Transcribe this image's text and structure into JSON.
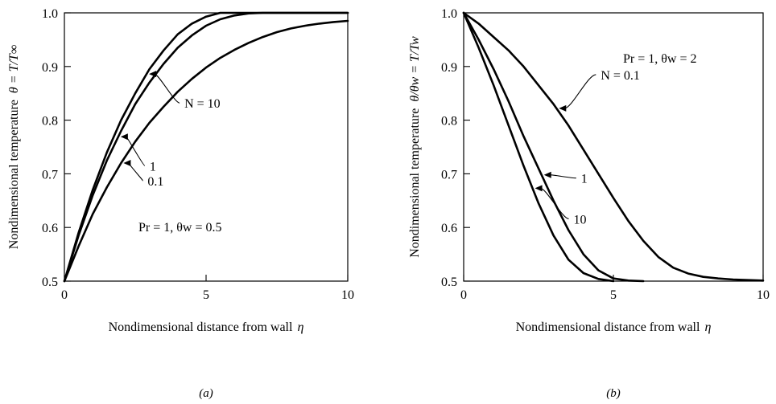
{
  "chart_data": [
    {
      "type": "line",
      "panel": "(a)",
      "xlabel": "Nondimensional distance from wall",
      "xlabel_symbol": "η",
      "ylabel": "Nondimensional temperature",
      "ylabel_symbol": "θ = T/T∞",
      "xlim": [
        0,
        10
      ],
      "ylim": [
        0.5,
        1.0
      ],
      "xticks": [
        0,
        5,
        10
      ],
      "yticks": [
        0.5,
        0.6,
        0.7,
        0.8,
        0.9,
        1.0
      ],
      "grid": false,
      "annotation": "Pr = 1,  θw = 0.5",
      "series": [
        {
          "name": "N = 10",
          "x": [
            0,
            0.5,
            1,
            1.5,
            2,
            2.5,
            3,
            3.5,
            4,
            4.5,
            5,
            5.5,
            6,
            10
          ],
          "y": [
            0.5,
            0.59,
            0.67,
            0.74,
            0.8,
            0.85,
            0.895,
            0.93,
            0.96,
            0.98,
            0.993,
            1.0,
            1.0,
            1.0
          ]
        },
        {
          "name": "1",
          "x": [
            0,
            0.5,
            1,
            1.5,
            2,
            2.5,
            3,
            3.5,
            4,
            4.5,
            5,
            5.5,
            6,
            6.5,
            7,
            10
          ],
          "y": [
            0.5,
            0.585,
            0.66,
            0.725,
            0.78,
            0.83,
            0.87,
            0.905,
            0.935,
            0.958,
            0.976,
            0.988,
            0.995,
            0.999,
            1.0,
            1.0
          ]
        },
        {
          "name": "0.1",
          "x": [
            0,
            0.5,
            1,
            1.5,
            2,
            2.5,
            3,
            3.5,
            4,
            4.5,
            5,
            5.5,
            6,
            6.5,
            7,
            7.5,
            8,
            8.5,
            9,
            9.5,
            10
          ],
          "y": [
            0.5,
            0.565,
            0.625,
            0.675,
            0.72,
            0.76,
            0.795,
            0.825,
            0.853,
            0.877,
            0.898,
            0.916,
            0.931,
            0.944,
            0.955,
            0.964,
            0.971,
            0.976,
            0.98,
            0.983,
            0.985
          ]
        }
      ],
      "labels": [
        {
          "text": "N = 10",
          "series": 0,
          "at_x": 2.9
        },
        {
          "text": "1",
          "series": 1,
          "at_x": 1.9
        },
        {
          "text": "0.1",
          "series": 2,
          "at_x": 2.0
        }
      ],
      "caption": "(a)"
    },
    {
      "type": "line",
      "panel": "(b)",
      "xlabel": "Nondimensional distance from wall",
      "xlabel_symbol": "η",
      "ylabel": "Nondimensional temperature",
      "ylabel_symbol": "θ/θw = T/Tw",
      "xlim": [
        0,
        10
      ],
      "ylim": [
        0.5,
        1.0
      ],
      "xticks": [
        0,
        5,
        10
      ],
      "yticks": [
        0.5,
        0.6,
        0.7,
        0.8,
        0.9,
        1.0
      ],
      "grid": false,
      "annotation": "Pr = 1,  θw = 2",
      "series": [
        {
          "name": "N = 0.1",
          "x": [
            0,
            0.5,
            1,
            1.5,
            2,
            2.5,
            3,
            3.5,
            4,
            4.5,
            5,
            5.5,
            6,
            6.5,
            7,
            7.5,
            8,
            8.5,
            9,
            9.5,
            10
          ],
          "y": [
            1.0,
            0.98,
            0.955,
            0.93,
            0.9,
            0.865,
            0.83,
            0.79,
            0.745,
            0.7,
            0.655,
            0.612,
            0.575,
            0.545,
            0.525,
            0.514,
            0.508,
            0.505,
            0.503,
            0.502,
            0.501
          ]
        },
        {
          "name": "1",
          "x": [
            0,
            0.5,
            1,
            1.5,
            2,
            2.5,
            3,
            3.5,
            4,
            4.5,
            5,
            5.5,
            6
          ],
          "y": [
            1.0,
            0.95,
            0.895,
            0.835,
            0.77,
            0.71,
            0.65,
            0.595,
            0.55,
            0.52,
            0.505,
            0.501,
            0.5
          ]
        },
        {
          "name": "10",
          "x": [
            0,
            0.5,
            1,
            1.5,
            2,
            2.5,
            3,
            3.5,
            4,
            4.5,
            5
          ],
          "y": [
            1.0,
            0.935,
            0.865,
            0.79,
            0.715,
            0.645,
            0.585,
            0.54,
            0.515,
            0.504,
            0.5
          ]
        }
      ],
      "labels": [
        {
          "text": "N = 0.1",
          "series": 0,
          "at_x": 3.1
        },
        {
          "text": "1",
          "series": 1,
          "at_x": 2.6
        },
        {
          "text": "10",
          "series": 2,
          "at_x": 2.3
        }
      ],
      "caption": "(b)"
    }
  ]
}
